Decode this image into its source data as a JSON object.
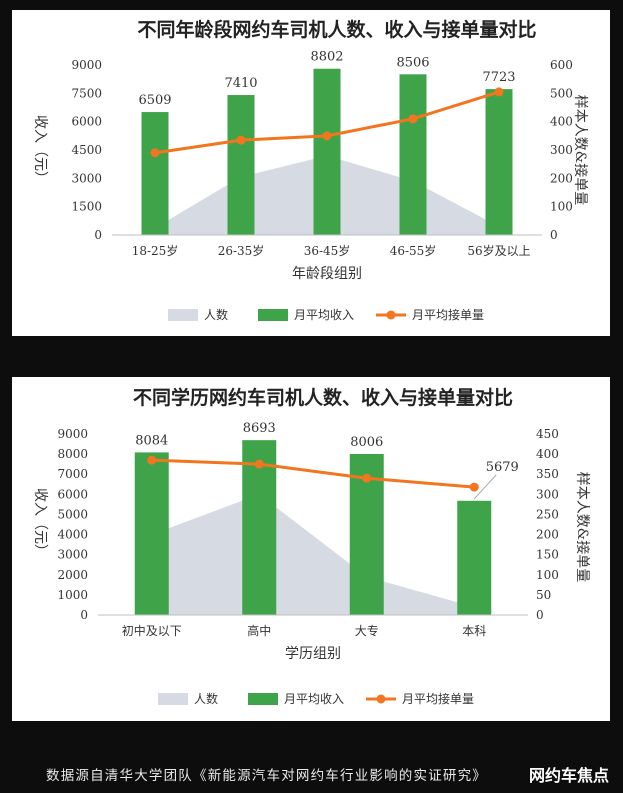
{
  "chart_data": [
    {
      "type": "bar",
      "title": "不同年龄段网约车司机人数、收入与接单量对比",
      "xlabel": "年龄段组别",
      "ylabel": "收入（元）",
      "y2label": "样本人数&接单量",
      "categories": [
        "18-25岁",
        "26-35岁",
        "36-45岁",
        "46-55岁",
        "56岁及以上"
      ],
      "ylim": [
        0,
        9000
      ],
      "yticks": [
        0,
        1500,
        3000,
        4500,
        6000,
        7500,
        9000
      ],
      "y2lim": [
        0,
        600
      ],
      "y2ticks": [
        0,
        100,
        200,
        300,
        400,
        500,
        600
      ],
      "legend": "bottom",
      "series": [
        {
          "name": "人数",
          "type": "area",
          "axis": "right",
          "color": "#d6dbe3",
          "values": [
            25,
            205,
            280,
            190,
            30
          ]
        },
        {
          "name": "月平均收入",
          "type": "bar",
          "axis": "left",
          "color": "#3fa34a",
          "values": [
            6509,
            7410,
            8802,
            8506,
            7723
          ]
        },
        {
          "name": "月平均接单量",
          "type": "line",
          "axis": "right",
          "color": "#f27520",
          "values": [
            290,
            335,
            350,
            410,
            505
          ]
        }
      ],
      "data_labels": [
        "6509",
        "7410",
        "8802",
        "8506",
        "7723"
      ]
    },
    {
      "type": "bar",
      "title": "不同学历网约车司机人数、收入与接单量对比",
      "xlabel": "学历组别",
      "ylabel": "收入（元）",
      "y2label": "样本人数&接单量",
      "categories": [
        "初中及以下",
        "高中",
        "大专",
        "本科"
      ],
      "ylim": [
        0,
        9000
      ],
      "yticks": [
        0,
        1000,
        2000,
        3000,
        4000,
        5000,
        6000,
        7000,
        8000,
        9000
      ],
      "y2lim": [
        0,
        450
      ],
      "y2ticks": [
        0,
        50,
        100,
        150,
        200,
        250,
        300,
        350,
        400,
        450
      ],
      "legend": "bottom",
      "series": [
        {
          "name": "人数",
          "type": "area",
          "axis": "right",
          "color": "#d6dbe3",
          "values": [
            200,
            300,
            95,
            20
          ]
        },
        {
          "name": "月平均收入",
          "type": "bar",
          "axis": "left",
          "color": "#3fa34a",
          "values": [
            8084,
            8693,
            8006,
            5679
          ]
        },
        {
          "name": "月平均接单量",
          "type": "line",
          "axis": "right",
          "color": "#f27520",
          "values": [
            385,
            375,
            340,
            318
          ]
        }
      ],
      "data_labels": [
        "8084",
        "8693",
        "8006",
        "5679"
      ]
    }
  ],
  "footer": {
    "note": "数据源自清华大学团队《新能源汽车对网约车行业影响的实证研究》",
    "brand": "网约车焦点"
  }
}
